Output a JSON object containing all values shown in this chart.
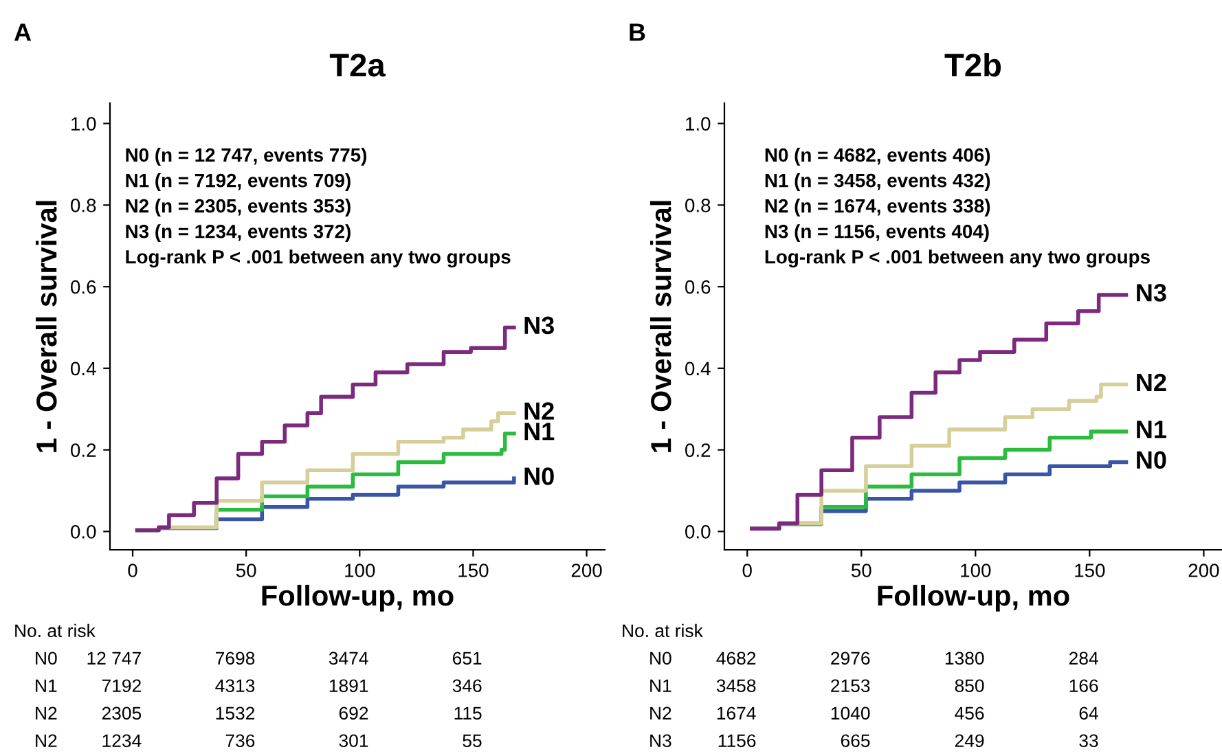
{
  "chart_data": [
    {
      "type": "step",
      "title": "T2a",
      "xlabel": "Follow-up, mo",
      "ylabel": "1 - Overall survival",
      "xlim": [
        -10,
        208
      ],
      "ylim": [
        -0.045,
        1.05
      ],
      "xticks": [
        0,
        50,
        100,
        150,
        200
      ],
      "yticks": [
        {
          "value": 0,
          "label": "0.0"
        },
        {
          "value": 0.2,
          "label": "0.2"
        },
        {
          "value": 0.4,
          "label": "0.4"
        },
        {
          "value": 0.6,
          "label": "0.6"
        },
        {
          "value": 0.8,
          "label": "0.8"
        },
        {
          "value": 1,
          "label": "1.0"
        }
      ],
      "grid": false,
      "legend": false,
      "series": [
        {
          "name": "N0",
          "color": "#3a55a8",
          "x": [
            2,
            11.5,
            37,
            57,
            77,
            97,
            117,
            137,
            168
          ],
          "values": [
            0.003,
            0.008,
            0.03,
            0.06,
            0.08,
            0.09,
            0.11,
            0.12,
            0.13
          ]
        },
        {
          "name": "N1",
          "color": "#2dbb3f",
          "x": [
            2,
            11.5,
            37,
            57,
            77,
            97,
            117,
            137,
            162.5,
            164,
            168
          ],
          "values": [
            0.003,
            0.009,
            0.053,
            0.086,
            0.11,
            0.14,
            0.17,
            0.19,
            0.2,
            0.24,
            0.24
          ]
        },
        {
          "name": "N2",
          "color": "#d6cf9a",
          "x": [
            2,
            11.5,
            37,
            57,
            77,
            97,
            117,
            137,
            145.6,
            158,
            161,
            168
          ],
          "values": [
            0.003,
            0.01,
            0.075,
            0.12,
            0.15,
            0.19,
            0.22,
            0.23,
            0.25,
            0.27,
            0.29,
            0.29
          ]
        },
        {
          "name": "N3",
          "color": "#7b2a7e",
          "x": [
            2,
            11.5,
            16,
            27,
            37,
            46.5,
            57,
            67,
            77,
            83,
            97,
            107,
            121,
            137,
            149,
            162.5,
            164,
            168
          ],
          "values": [
            0.003,
            0.01,
            0.04,
            0.07,
            0.13,
            0.19,
            0.22,
            0.26,
            0.29,
            0.33,
            0.36,
            0.39,
            0.41,
            0.44,
            0.45,
            0.45,
            0.5,
            0.5
          ]
        }
      ],
      "annotations": [
        "A",
        "N0 (n = 12 747, events 775)",
        "N1 (n = 7192, events 709)",
        "N2 (n = 2305, events 353)",
        "N3 (n = 1234, events 372)",
        "Log-rank P < .001 between any two groups",
        "No. at risk",
        "N0",
        "12 747",
        "7698",
        "3474",
        "651",
        "N1",
        "7192",
        "4313",
        "1891",
        "346",
        "N2",
        "2305",
        "1532",
        "692",
        "115",
        "N2",
        "1234",
        "736",
        "301",
        "55"
      ]
    },
    {
      "type": "step",
      "title": "T2b",
      "xlabel": "Follow-up, mo",
      "ylabel": "1 - Overall survival",
      "xlim": [
        -10,
        208
      ],
      "ylim": [
        -0.045,
        1.05
      ],
      "xticks": [
        0,
        50,
        100,
        150,
        200
      ],
      "yticks": [
        {
          "value": 0,
          "label": "0.0"
        },
        {
          "value": 0.2,
          "label": "0.2"
        },
        {
          "value": 0.4,
          "label": "0.4"
        },
        {
          "value": 0.6,
          "label": "0.6"
        },
        {
          "value": 0.8,
          "label": "0.8"
        },
        {
          "value": 1,
          "label": "1.0"
        }
      ],
      "grid": false,
      "legend": false,
      "series": [
        {
          "name": "N0",
          "color": "#3a55a8",
          "x": [
            2,
            14,
            32.5,
            52,
            72,
            93,
            113,
            132.5,
            159,
            166
          ],
          "values": [
            0.007,
            0.02,
            0.05,
            0.08,
            0.1,
            0.12,
            0.14,
            0.16,
            0.17,
            0.17
          ]
        },
        {
          "name": "N1",
          "color": "#2dbb3f",
          "x": [
            2,
            14,
            32.5,
            52,
            72,
            93,
            113,
            132.5,
            150.6,
            166
          ],
          "values": [
            0.007,
            0.018,
            0.06,
            0.11,
            0.14,
            0.18,
            0.2,
            0.23,
            0.245,
            0.245
          ]
        },
        {
          "name": "N2",
          "color": "#d6cf9a",
          "x": [
            2,
            14,
            32.5,
            52,
            72,
            88.5,
            113,
            125,
            141,
            153,
            155,
            166
          ],
          "values": [
            0.007,
            0.02,
            0.1,
            0.16,
            0.21,
            0.25,
            0.28,
            0.3,
            0.32,
            0.33,
            0.36,
            0.36
          ]
        },
        {
          "name": "N3",
          "color": "#7b2a7e",
          "x": [
            2,
            14,
            22,
            32.5,
            46,
            58,
            72,
            82.5,
            93,
            102,
            117,
            131,
            145,
            153,
            154,
            166
          ],
          "values": [
            0.007,
            0.02,
            0.09,
            0.15,
            0.23,
            0.28,
            0.34,
            0.39,
            0.42,
            0.44,
            0.47,
            0.51,
            0.54,
            0.54,
            0.58,
            0.58
          ]
        }
      ],
      "annotations": [
        "B",
        "N0 (n = 4682, events 406)",
        "N1 (n = 3458, events 432)",
        "N2 (n = 1674, events 338)",
        "N3 (n = 1156, events 404)",
        "Log-rank P < .001 between any two groups",
        "No. at risk",
        "N0",
        "4682",
        "2976",
        "1380",
        "284",
        "N1",
        "3458",
        "2153",
        "850",
        "166",
        "N2",
        "1674",
        "1040",
        "456",
        "64",
        "N3",
        "1156",
        "665",
        "249",
        "33"
      ]
    }
  ]
}
